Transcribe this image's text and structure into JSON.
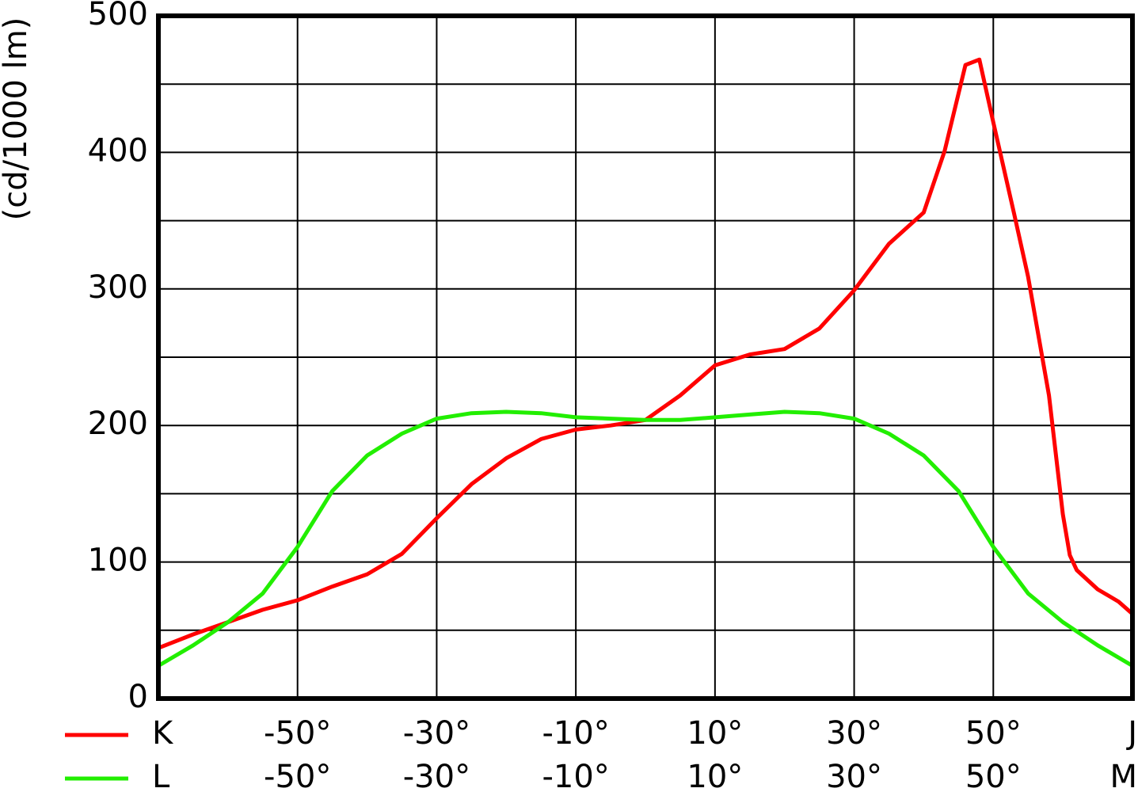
{
  "chart_data": {
    "type": "line",
    "y_label": "(cd/1000 lm)",
    "xlim": [
      -70,
      70
    ],
    "ylim": [
      0,
      500
    ],
    "yticks": [
      0,
      100,
      200,
      300,
      400,
      500
    ],
    "ygrid": [
      0,
      50,
      100,
      150,
      200,
      250,
      300,
      350,
      400,
      450,
      500
    ],
    "grid": true,
    "series": [
      {
        "name": "K",
        "color": "#ff0000",
        "x": [
          -70,
          -65,
          -60,
          -55,
          -50,
          -45,
          -40,
          -35,
          -30,
          -25,
          -20,
          -15,
          -10,
          -5,
          0,
          5,
          10,
          15,
          20,
          25,
          30,
          35,
          40,
          43,
          46,
          48,
          50,
          53,
          55,
          58,
          60,
          61,
          62,
          65,
          68,
          70
        ],
        "values": [
          37,
          47,
          56,
          65,
          72,
          82,
          91,
          106,
          132,
          157,
          176,
          190,
          197,
          200,
          204,
          222,
          244,
          252,
          256,
          271,
          299,
          333,
          356,
          401,
          464,
          468,
          422,
          355,
          309,
          222,
          135,
          105,
          94,
          80,
          71,
          62
        ],
        "xticks": [
          {
            "value": -50,
            "label": "-50°"
          },
          {
            "value": -30,
            "label": "-30°"
          },
          {
            "value": -10,
            "label": "-10°"
          },
          {
            "value": 10,
            "label": "10°"
          },
          {
            "value": 30,
            "label": "30°"
          },
          {
            "value": 50,
            "label": "50°"
          },
          {
            "value": 70,
            "label": "J"
          }
        ]
      },
      {
        "name": "L",
        "color": "#22ee00",
        "x": [
          -70,
          -65,
          -60,
          -55,
          -50,
          -45,
          -40,
          -35,
          -30,
          -25,
          -20,
          -15,
          -10,
          -5,
          0,
          5,
          10,
          15,
          20,
          25,
          30,
          35,
          40,
          45,
          50,
          55,
          60,
          65,
          70
        ],
        "values": [
          24,
          39,
          56,
          77,
          111,
          152,
          178,
          194,
          205,
          209,
          210,
          209,
          206,
          205,
          204,
          204,
          206,
          208,
          210,
          209,
          205,
          194,
          178,
          152,
          111,
          77,
          56,
          39,
          24
        ],
        "xticks": [
          {
            "value": -50,
            "label": "-50°"
          },
          {
            "value": -30,
            "label": "-30°"
          },
          {
            "value": -10,
            "label": "-10°"
          },
          {
            "value": 10,
            "label": "10°"
          },
          {
            "value": 30,
            "label": "30°"
          },
          {
            "value": 50,
            "label": "50°"
          },
          {
            "value": 70,
            "label": "M"
          }
        ]
      }
    ]
  }
}
